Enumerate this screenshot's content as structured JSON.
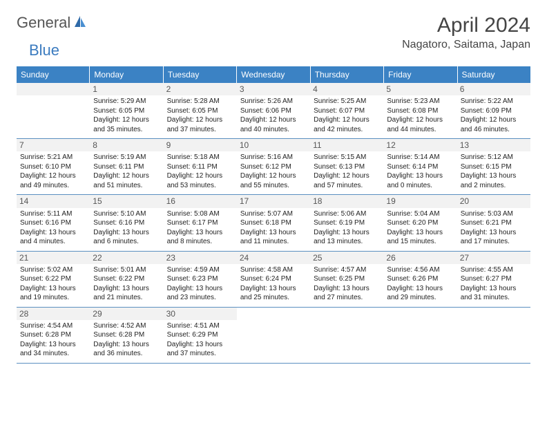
{
  "logo": {
    "text1": "General",
    "text2": "Blue"
  },
  "header": {
    "month_title": "April 2024",
    "location": "Nagatoro, Saitama, Japan"
  },
  "day_labels": [
    "Sunday",
    "Monday",
    "Tuesday",
    "Wednesday",
    "Thursday",
    "Friday",
    "Saturday"
  ],
  "colors": {
    "header_bar": "#3b82c4",
    "header_text": "#ffffff",
    "row_border": "#5a8fc0",
    "daynum_bg": "#f2f2f2",
    "text": "#222222",
    "logo_gray": "#555555",
    "logo_blue": "#3b7bbf"
  },
  "weeks": [
    [
      {},
      {
        "day": "1",
        "sunrise": "Sunrise: 5:29 AM",
        "sunset": "Sunset: 6:05 PM",
        "dl1": "Daylight: 12 hours",
        "dl2": "and 35 minutes."
      },
      {
        "day": "2",
        "sunrise": "Sunrise: 5:28 AM",
        "sunset": "Sunset: 6:05 PM",
        "dl1": "Daylight: 12 hours",
        "dl2": "and 37 minutes."
      },
      {
        "day": "3",
        "sunrise": "Sunrise: 5:26 AM",
        "sunset": "Sunset: 6:06 PM",
        "dl1": "Daylight: 12 hours",
        "dl2": "and 40 minutes."
      },
      {
        "day": "4",
        "sunrise": "Sunrise: 5:25 AM",
        "sunset": "Sunset: 6:07 PM",
        "dl1": "Daylight: 12 hours",
        "dl2": "and 42 minutes."
      },
      {
        "day": "5",
        "sunrise": "Sunrise: 5:23 AM",
        "sunset": "Sunset: 6:08 PM",
        "dl1": "Daylight: 12 hours",
        "dl2": "and 44 minutes."
      },
      {
        "day": "6",
        "sunrise": "Sunrise: 5:22 AM",
        "sunset": "Sunset: 6:09 PM",
        "dl1": "Daylight: 12 hours",
        "dl2": "and 46 minutes."
      }
    ],
    [
      {
        "day": "7",
        "sunrise": "Sunrise: 5:21 AM",
        "sunset": "Sunset: 6:10 PM",
        "dl1": "Daylight: 12 hours",
        "dl2": "and 49 minutes."
      },
      {
        "day": "8",
        "sunrise": "Sunrise: 5:19 AM",
        "sunset": "Sunset: 6:11 PM",
        "dl1": "Daylight: 12 hours",
        "dl2": "and 51 minutes."
      },
      {
        "day": "9",
        "sunrise": "Sunrise: 5:18 AM",
        "sunset": "Sunset: 6:11 PM",
        "dl1": "Daylight: 12 hours",
        "dl2": "and 53 minutes."
      },
      {
        "day": "10",
        "sunrise": "Sunrise: 5:16 AM",
        "sunset": "Sunset: 6:12 PM",
        "dl1": "Daylight: 12 hours",
        "dl2": "and 55 minutes."
      },
      {
        "day": "11",
        "sunrise": "Sunrise: 5:15 AM",
        "sunset": "Sunset: 6:13 PM",
        "dl1": "Daylight: 12 hours",
        "dl2": "and 57 minutes."
      },
      {
        "day": "12",
        "sunrise": "Sunrise: 5:14 AM",
        "sunset": "Sunset: 6:14 PM",
        "dl1": "Daylight: 13 hours",
        "dl2": "and 0 minutes."
      },
      {
        "day": "13",
        "sunrise": "Sunrise: 5:12 AM",
        "sunset": "Sunset: 6:15 PM",
        "dl1": "Daylight: 13 hours",
        "dl2": "and 2 minutes."
      }
    ],
    [
      {
        "day": "14",
        "sunrise": "Sunrise: 5:11 AM",
        "sunset": "Sunset: 6:16 PM",
        "dl1": "Daylight: 13 hours",
        "dl2": "and 4 minutes."
      },
      {
        "day": "15",
        "sunrise": "Sunrise: 5:10 AM",
        "sunset": "Sunset: 6:16 PM",
        "dl1": "Daylight: 13 hours",
        "dl2": "and 6 minutes."
      },
      {
        "day": "16",
        "sunrise": "Sunrise: 5:08 AM",
        "sunset": "Sunset: 6:17 PM",
        "dl1": "Daylight: 13 hours",
        "dl2": "and 8 minutes."
      },
      {
        "day": "17",
        "sunrise": "Sunrise: 5:07 AM",
        "sunset": "Sunset: 6:18 PM",
        "dl1": "Daylight: 13 hours",
        "dl2": "and 11 minutes."
      },
      {
        "day": "18",
        "sunrise": "Sunrise: 5:06 AM",
        "sunset": "Sunset: 6:19 PM",
        "dl1": "Daylight: 13 hours",
        "dl2": "and 13 minutes."
      },
      {
        "day": "19",
        "sunrise": "Sunrise: 5:04 AM",
        "sunset": "Sunset: 6:20 PM",
        "dl1": "Daylight: 13 hours",
        "dl2": "and 15 minutes."
      },
      {
        "day": "20",
        "sunrise": "Sunrise: 5:03 AM",
        "sunset": "Sunset: 6:21 PM",
        "dl1": "Daylight: 13 hours",
        "dl2": "and 17 minutes."
      }
    ],
    [
      {
        "day": "21",
        "sunrise": "Sunrise: 5:02 AM",
        "sunset": "Sunset: 6:22 PM",
        "dl1": "Daylight: 13 hours",
        "dl2": "and 19 minutes."
      },
      {
        "day": "22",
        "sunrise": "Sunrise: 5:01 AM",
        "sunset": "Sunset: 6:22 PM",
        "dl1": "Daylight: 13 hours",
        "dl2": "and 21 minutes."
      },
      {
        "day": "23",
        "sunrise": "Sunrise: 4:59 AM",
        "sunset": "Sunset: 6:23 PM",
        "dl1": "Daylight: 13 hours",
        "dl2": "and 23 minutes."
      },
      {
        "day": "24",
        "sunrise": "Sunrise: 4:58 AM",
        "sunset": "Sunset: 6:24 PM",
        "dl1": "Daylight: 13 hours",
        "dl2": "and 25 minutes."
      },
      {
        "day": "25",
        "sunrise": "Sunrise: 4:57 AM",
        "sunset": "Sunset: 6:25 PM",
        "dl1": "Daylight: 13 hours",
        "dl2": "and 27 minutes."
      },
      {
        "day": "26",
        "sunrise": "Sunrise: 4:56 AM",
        "sunset": "Sunset: 6:26 PM",
        "dl1": "Daylight: 13 hours",
        "dl2": "and 29 minutes."
      },
      {
        "day": "27",
        "sunrise": "Sunrise: 4:55 AM",
        "sunset": "Sunset: 6:27 PM",
        "dl1": "Daylight: 13 hours",
        "dl2": "and 31 minutes."
      }
    ],
    [
      {
        "day": "28",
        "sunrise": "Sunrise: 4:54 AM",
        "sunset": "Sunset: 6:28 PM",
        "dl1": "Daylight: 13 hours",
        "dl2": "and 34 minutes."
      },
      {
        "day": "29",
        "sunrise": "Sunrise: 4:52 AM",
        "sunset": "Sunset: 6:28 PM",
        "dl1": "Daylight: 13 hours",
        "dl2": "and 36 minutes."
      },
      {
        "day": "30",
        "sunrise": "Sunrise: 4:51 AM",
        "sunset": "Sunset: 6:29 PM",
        "dl1": "Daylight: 13 hours",
        "dl2": "and 37 minutes."
      },
      {},
      {},
      {},
      {}
    ]
  ]
}
